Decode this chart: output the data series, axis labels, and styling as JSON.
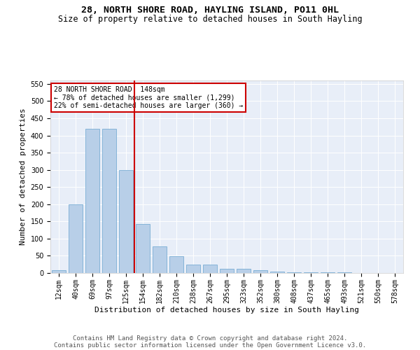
{
  "title_line1": "28, NORTH SHORE ROAD, HAYLING ISLAND, PO11 0HL",
  "title_line2": "Size of property relative to detached houses in South Hayling",
  "xlabel": "Distribution of detached houses by size in South Hayling",
  "ylabel": "Number of detached properties",
  "categories": [
    "12sqm",
    "40sqm",
    "69sqm",
    "97sqm",
    "125sqm",
    "154sqm",
    "182sqm",
    "210sqm",
    "238sqm",
    "267sqm",
    "295sqm",
    "323sqm",
    "352sqm",
    "380sqm",
    "408sqm",
    "437sqm",
    "465sqm",
    "493sqm",
    "521sqm",
    "550sqm",
    "578sqm"
  ],
  "values": [
    8,
    200,
    420,
    420,
    300,
    143,
    77,
    48,
    25,
    25,
    12,
    12,
    8,
    5,
    3,
    3,
    2,
    2,
    1,
    1,
    0
  ],
  "bar_color": "#b8cfe8",
  "bar_edge_color": "#7aadd4",
  "vline_color": "#cc0000",
  "vline_x": 4.5,
  "annotation_line1": "28 NORTH SHORE ROAD: 148sqm",
  "annotation_line2": "← 78% of detached houses are smaller (1,299)",
  "annotation_line3": "22% of semi-detached houses are larger (360) →",
  "annotation_box_edgecolor": "#cc0000",
  "ylim": [
    0,
    560
  ],
  "yticks": [
    0,
    50,
    100,
    150,
    200,
    250,
    300,
    350,
    400,
    450,
    500,
    550
  ],
  "bg_color": "#e8eef8",
  "footer_line1": "Contains HM Land Registry data © Crown copyright and database right 2024.",
  "footer_line2": "Contains public sector information licensed under the Open Government Licence v3.0.",
  "title_fontsize": 9.5,
  "subtitle_fontsize": 8.5,
  "xlabel_fontsize": 8,
  "ylabel_fontsize": 8,
  "tick_fontsize": 7,
  "footer_fontsize": 6.5,
  "ann_fontsize": 7
}
